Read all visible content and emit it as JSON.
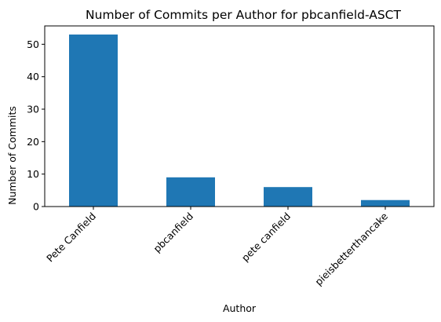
{
  "chart_data": {
    "type": "bar",
    "title": "Number of Commits per Author for pbcanfield-ASCT",
    "xlabel": "Author",
    "ylabel": "Number of Commits",
    "categories": [
      "Pete Canfield",
      "pbcanfield",
      "pete canfield",
      "pieisbetterthancake"
    ],
    "values": [
      53,
      9,
      6,
      2
    ],
    "ylim": [
      0,
      55.65
    ],
    "yticks": [
      0,
      10,
      20,
      30,
      40,
      50
    ],
    "grid": false,
    "legend": "none",
    "bar_color": "#1f77b4"
  }
}
